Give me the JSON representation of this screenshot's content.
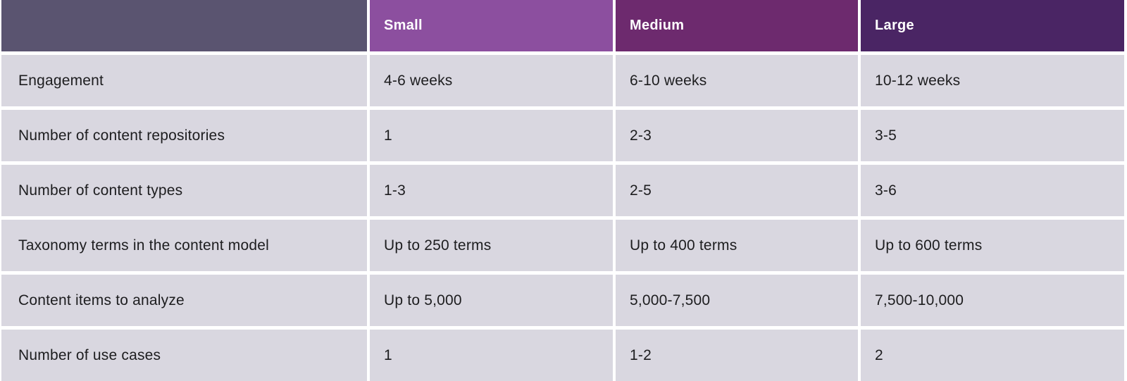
{
  "table": {
    "header": {
      "corner_label": "",
      "corner_color": "#5a5470",
      "text_color": "#ffffff",
      "columns": [
        {
          "label": "Small",
          "color": "#8c4f9f"
        },
        {
          "label": "Medium",
          "color": "#6d2a6e"
        },
        {
          "label": "Large",
          "color": "#4a2564"
        }
      ]
    },
    "rows": [
      {
        "label": "Engagement",
        "values": [
          "4-6 weeks",
          "6-10 weeks",
          "10-12 weeks"
        ]
      },
      {
        "label": "Number of content repositories",
        "values": [
          "1",
          "2-3",
          "3-5"
        ]
      },
      {
        "label": "Number of content types",
        "values": [
          "1-3",
          "2-5",
          "3-6"
        ]
      },
      {
        "label": "Taxonomy terms in the content model",
        "values": [
          "Up to 250 terms",
          "Up to 400 terms",
          "Up to 600 terms"
        ]
      },
      {
        "label": "Content items to analyze",
        "values": [
          "Up to 5,000",
          "5,000-7,500",
          "7,500-10,000"
        ]
      },
      {
        "label": "Number of use cases",
        "values": [
          "1",
          "1-2",
          "2"
        ]
      }
    ],
    "row_bg": "#d9d7e0",
    "body_text_color": "#1d1d1f"
  },
  "chart_data": {
    "type": "table",
    "title": "",
    "columns": [
      "",
      "Small",
      "Medium",
      "Large"
    ],
    "rows": [
      [
        "Engagement",
        "4-6 weeks",
        "6-10 weeks",
        "10-12 weeks"
      ],
      [
        "Number of content repositories",
        "1",
        "2-3",
        "3-5"
      ],
      [
        "Number of content types",
        "1-3",
        "2-5",
        "3-6"
      ],
      [
        "Taxonomy terms in the content model",
        "Up to 250 terms",
        "Up to 400 terms",
        "Up to 600 terms"
      ],
      [
        "Content items to analyze",
        "Up to 5,000",
        "5,000-7,500",
        "7,500-10,000"
      ],
      [
        "Number of use cases",
        "1",
        "1-2",
        "2"
      ]
    ],
    "header_colors": [
      "#5a5470",
      "#8c4f9f",
      "#6d2a6e",
      "#4a2564"
    ],
    "row_background": "#d9d7e0",
    "grid": "white gaps between cells"
  }
}
